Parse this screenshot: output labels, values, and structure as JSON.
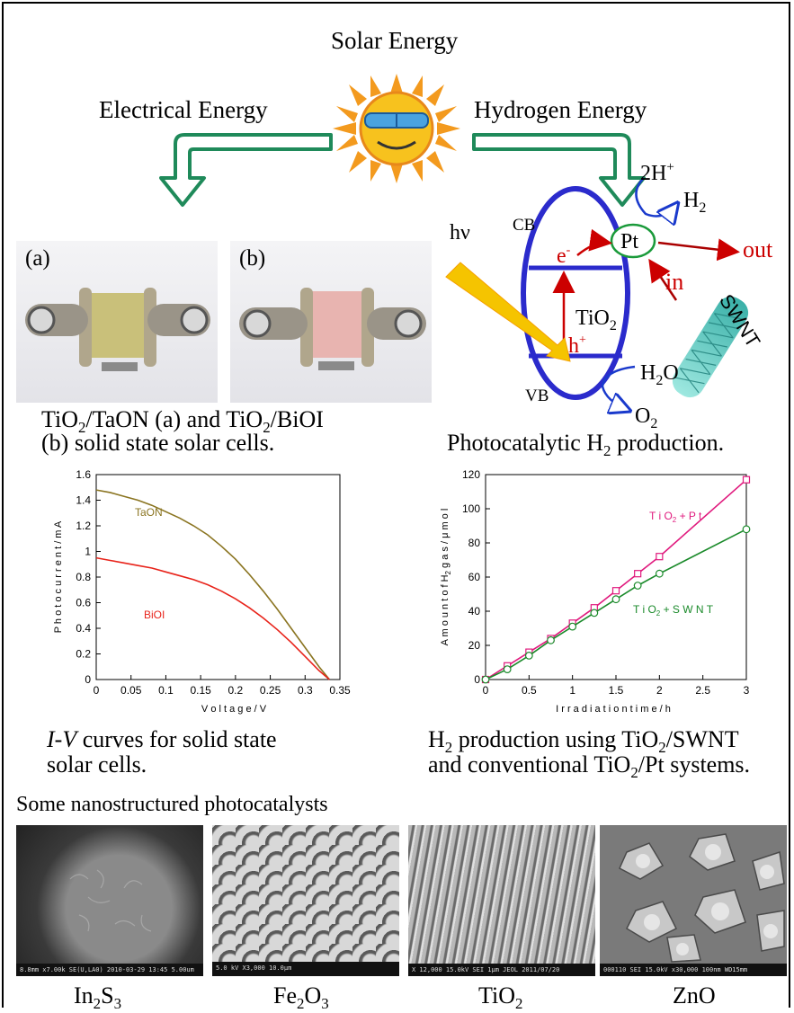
{
  "header": {
    "title": "Solar Energy",
    "left_branch": "Electrical Energy",
    "right_branch": "Hydrogen Energy"
  },
  "icons": {
    "sun": "sun-with-sunglasses-icon",
    "left_arrow": "green-bent-arrow-down-left-icon",
    "right_arrow": "green-bent-arrow-down-right-icon"
  },
  "colors": {
    "arrow_green": "#1f8a5a",
    "tio2_blue": "#2b2bcc",
    "red": "#cc0000",
    "sun_orange": "#f5a623",
    "taon": "#8a7420",
    "bioi": "#e8231a",
    "pt_curve": "#e0197d",
    "swnt_curve": "#1a8a2a",
    "pt_circle": "#1a9a3a"
  },
  "photos": {
    "a_label": "(a)",
    "b_label": "(b)",
    "caption_line1_a": "TiO",
    "caption_line1_sub1": "2",
    "caption_line1_b": "/TaON (a)  and TiO",
    "caption_line1_sub2": "2",
    "caption_line1_c": "/BiOI",
    "caption_line2": "(b) solid state solar cells."
  },
  "mechanism": {
    "hv": "hν",
    "cb": "CB",
    "vb": "VB",
    "electron": "e",
    "electron_sup": "-",
    "hole": "h",
    "hole_sup": "+",
    "center": "TiO",
    "center_sub": "2",
    "pt": "Pt",
    "h_in": "2H",
    "h_in_sup": "+",
    "h2": "H",
    "h2_sub": "2",
    "h2o": "H",
    "h2o_sub": "2",
    "h2o_end": "O",
    "o2": "O",
    "o2_sub": "2",
    "out": "out",
    "in": "in",
    "swnt": "SWNT",
    "caption_a": "Photocatalytic H",
    "caption_sub": "2",
    "caption_b": " production."
  },
  "chart_data": [
    {
      "type": "line",
      "xlabel": "V o l t a g e  /  V",
      "ylabel": "P h o t o c u r r e n t  /  m A",
      "xlim": [
        0,
        0.35
      ],
      "ylim": [
        0,
        1.6
      ],
      "xticks": [
        "0",
        "0.05",
        "0.1",
        "0.15",
        "0.2",
        "0.25",
        "0.3",
        "0.35"
      ],
      "yticks": [
        "0",
        "0.2",
        "0.4",
        "0.6",
        "0.8",
        "1",
        "1.2",
        "1.4",
        "1.6"
      ],
      "xtick_values": [
        0,
        0.05,
        0.1,
        0.15,
        0.2,
        0.25,
        0.3,
        0.35
      ],
      "ytick_values": [
        0,
        0.2,
        0.4,
        0.6,
        0.8,
        1,
        1.2,
        1.4,
        1.6
      ],
      "series": [
        {
          "name": "TaON",
          "color": "#8a7420",
          "x": [
            0,
            0.02,
            0.04,
            0.06,
            0.08,
            0.1,
            0.12,
            0.14,
            0.16,
            0.18,
            0.2,
            0.22,
            0.24,
            0.26,
            0.28,
            0.3,
            0.32,
            0.335
          ],
          "y": [
            1.48,
            1.46,
            1.43,
            1.4,
            1.36,
            1.31,
            1.26,
            1.2,
            1.13,
            1.04,
            0.94,
            0.82,
            0.69,
            0.55,
            0.4,
            0.25,
            0.1,
            0
          ]
        },
        {
          "name": "BiOI",
          "color": "#e8231a",
          "x": [
            0,
            0.02,
            0.04,
            0.06,
            0.08,
            0.1,
            0.12,
            0.14,
            0.16,
            0.18,
            0.2,
            0.22,
            0.24,
            0.26,
            0.28,
            0.3,
            0.32,
            0.335
          ],
          "y": [
            0.95,
            0.93,
            0.91,
            0.89,
            0.87,
            0.84,
            0.81,
            0.78,
            0.74,
            0.69,
            0.63,
            0.56,
            0.48,
            0.39,
            0.29,
            0.18,
            0.07,
            0
          ]
        }
      ],
      "caption_a": "I-V",
      "caption_b": " curves for solid state",
      "caption_line2": "solar cells."
    },
    {
      "type": "line",
      "xlabel": "I r r a d i a t i o n  t i m e  / h",
      "ylabel_a": "A m o u n t  o f  H",
      "ylabel_sub": "2",
      "ylabel_b": "  g a s  /  μ m o l",
      "xlim": [
        0,
        3
      ],
      "ylim": [
        0,
        120
      ],
      "xticks": [
        "0",
        "0.5",
        "1",
        "1.5",
        "2",
        "2.5",
        "3"
      ],
      "yticks": [
        "0",
        "20",
        "40",
        "60",
        "80",
        "100",
        "120"
      ],
      "xtick_values": [
        0,
        0.5,
        1,
        1.5,
        2,
        2.5,
        3
      ],
      "ytick_values": [
        0,
        20,
        40,
        60,
        80,
        100,
        120
      ],
      "series": [
        {
          "name": "TiO2+Pt",
          "label_a": "T i O",
          "label_sub": "2",
          "label_b": " + P t",
          "color": "#e0197d",
          "marker": "square",
          "x": [
            0,
            0.25,
            0.5,
            0.75,
            1,
            1.25,
            1.5,
            1.75,
            2,
            3
          ],
          "y": [
            0,
            8,
            16,
            24,
            33,
            42,
            52,
            62,
            72,
            117
          ]
        },
        {
          "name": "TiO2+SWNT",
          "label_a": "T i O",
          "label_sub": "2",
          "label_b": " + S W N T",
          "color": "#1a8a2a",
          "marker": "circle",
          "x": [
            0,
            0.25,
            0.5,
            0.75,
            1,
            1.25,
            1.5,
            1.75,
            2,
            3
          ],
          "y": [
            0,
            6,
            14,
            23,
            31,
            39,
            47,
            55,
            62,
            88
          ]
        }
      ],
      "caption_a": "H",
      "caption_sub1": "2",
      "caption_b": " production using TiO",
      "caption_sub2": "2",
      "caption_c": "/SWNT",
      "caption_line2_a": "and conventional TiO",
      "caption_line2_sub": "2",
      "caption_line2_b": "/Pt systems."
    }
  ],
  "nano": {
    "heading": "Some nanostructured photocatalysts",
    "items": [
      {
        "a": "In",
        "s1": "2",
        "b": "S",
        "s2": "3",
        "bar": "8.8mm x7.00k SE(U,LA0) 2010-03-29 13:45        5.00um"
      },
      {
        "a": "Fe",
        "s1": "2",
        "b": "O",
        "s2": "3",
        "bar": "5.0 kV  X3,000  10.0μm"
      },
      {
        "a": "TiO",
        "s1": "2",
        "b": "",
        "s2": "",
        "bar": "X 12,000  15.0kV SEI   1μm  JEOL  2011/07/20"
      },
      {
        "a": "ZnO",
        "s1": "",
        "b": "",
        "s2": "",
        "bar": "000110 SEI 15.0kV x30,000 100nm WD15mm"
      }
    ]
  }
}
